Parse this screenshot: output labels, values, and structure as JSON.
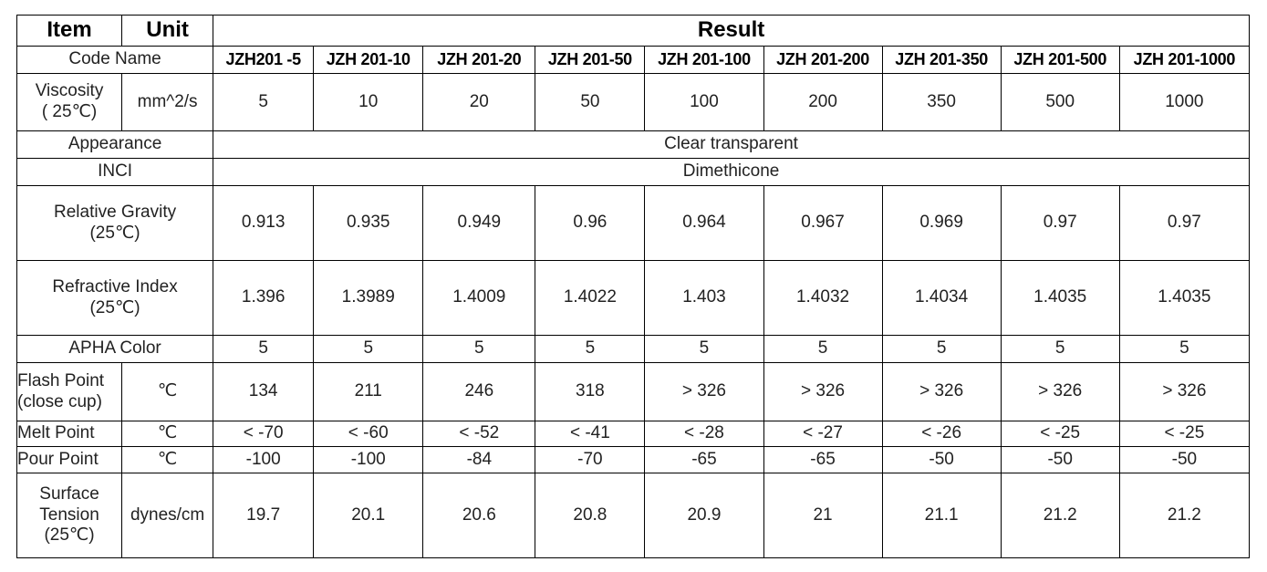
{
  "table": {
    "header": {
      "item": "Item",
      "unit": "Unit",
      "result": "Result"
    },
    "code_label": "Code Name",
    "codes": [
      "JZH201 -5",
      "JZH 201-10",
      "JZH 201-20",
      "JZH 201-50",
      "JZH 201-100",
      "JZH 201-200",
      "JZH 201-350",
      "JZH 201-500",
      "JZH 201-1000"
    ],
    "rows": [
      {
        "item": "Viscosity\n( 25℃)",
        "unit": "mm^2/s",
        "values": [
          "5",
          "10",
          "20",
          "50",
          "100",
          "200",
          "350",
          "500",
          "1000"
        ]
      },
      {
        "item": "Appearance",
        "text": "Clear transparent"
      },
      {
        "item": "INCI",
        "text": "Dimethicone"
      },
      {
        "item": "Relative Gravity\n(25℃)",
        "values": [
          "0.913",
          "0.935",
          "0.949",
          "0.96",
          "0.964",
          "0.967",
          "0.969",
          "0.97",
          "0.97"
        ]
      },
      {
        "item": "Refractive Index\n(25℃)",
        "values": [
          "1.396",
          "1.3989",
          "1.4009",
          "1.4022",
          "1.403",
          "1.4032",
          "1.4034",
          "1.4035",
          "1.4035"
        ]
      },
      {
        "item": "APHA Color",
        "values": [
          "5",
          "5",
          "5",
          "5",
          "5",
          "5",
          "5",
          "5",
          "5"
        ]
      },
      {
        "item": "Flash Point\n(close cup)",
        "unit": "℃",
        "values": [
          "134",
          "211",
          "246",
          "318",
          "> 326",
          "> 326",
          "> 326",
          "> 326",
          "> 326"
        ]
      },
      {
        "item": "Melt Point",
        "unit": "℃",
        "values": [
          "< -70",
          "< -60",
          "< -52",
          "< -41",
          "< -28",
          "< -27",
          "< -26",
          "< -25",
          "< -25"
        ]
      },
      {
        "item": "Pour Point",
        "unit": "℃",
        "values": [
          "-100",
          "-100",
          "-84",
          "-70",
          "-65",
          "-65",
          "-50",
          "-50",
          "-50"
        ]
      },
      {
        "item": "Surface\nTension\n(25℃)",
        "unit": "dynes/cm",
        "values": [
          "19.7",
          "20.1",
          "20.6",
          "20.8",
          "20.9",
          "21",
          "21.1",
          "21.2",
          "21.2"
        ]
      }
    ]
  }
}
